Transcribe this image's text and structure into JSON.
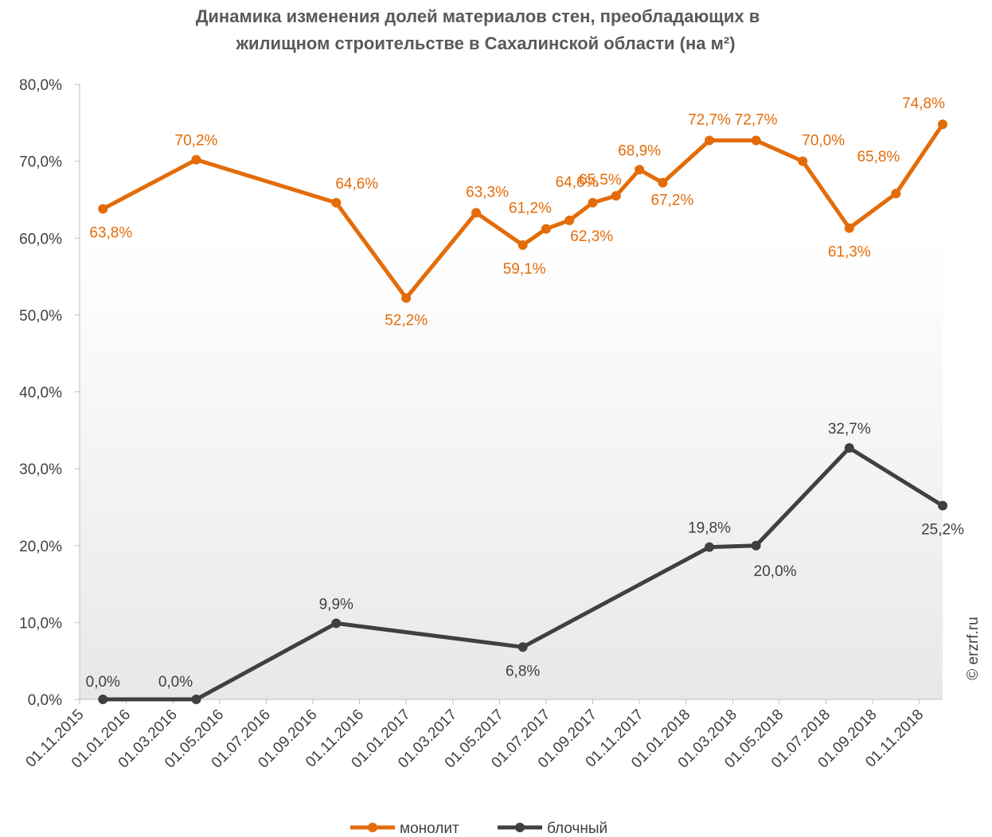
{
  "chart_data": {
    "type": "line",
    "title": [
      "Динамика изменения долей материалов стен, преобладающих в",
      "жилищном строительстве в Сахалинской области (на м²)"
    ],
    "xlim": [
      "01.11.2015",
      "01.12.2018"
    ],
    "xticks": [
      "01.11.2015",
      "01.01.2016",
      "01.03.2016",
      "01.05.2016",
      "01.07.2016",
      "01.09.2016",
      "01.11.2016",
      "01.01.2017",
      "01.03.2017",
      "01.05.2017",
      "01.07.2017",
      "01.09.2017",
      "01.11.2017",
      "01.01.2018",
      "01.03.2018",
      "01.05.2018",
      "01.07.2018",
      "01.09.2018",
      "01.11.2018"
    ],
    "ylim": [
      0,
      80
    ],
    "yticks": [
      {
        "value": 0,
        "label": "0,0%"
      },
      {
        "value": 10,
        "label": "10,0%"
      },
      {
        "value": 20,
        "label": "20,0%"
      },
      {
        "value": 30,
        "label": "30,0%"
      },
      {
        "value": 40,
        "label": "40,0%"
      },
      {
        "value": 50,
        "label": "50,0%"
      },
      {
        "value": 60,
        "label": "60,0%"
      },
      {
        "value": 70,
        "label": "70,0%"
      },
      {
        "value": 80,
        "label": "80,0%"
      }
    ],
    "legend": "bottom",
    "series": [
      {
        "name": "монолит",
        "color": "#e36c09",
        "x": [
          "01.12.2015",
          "01.04.2016",
          "01.10.2016",
          "01.01.2017",
          "01.04.2017",
          "01.06.2017",
          "01.07.2017",
          "01.08.2017",
          "01.09.2017",
          "01.10.2017",
          "01.11.2017",
          "01.12.2017",
          "01.02.2018",
          "01.04.2018",
          "01.06.2018",
          "01.08.2018",
          "01.10.2018",
          "01.12.2018"
        ],
        "values": [
          63.8,
          70.2,
          64.6,
          52.2,
          63.3,
          59.1,
          61.2,
          62.3,
          64.6,
          65.5,
          68.9,
          67.2,
          72.7,
          72.7,
          70.0,
          61.3,
          65.8,
          74.8
        ],
        "value_labels": [
          "63,8%",
          "70,2%",
          "64,6%",
          "52,2%",
          "63,3%",
          "59,1%",
          "61,2%",
          "62,3%",
          "64,6%",
          "65,5%",
          "68,9%",
          "67,2%",
          "72,7%",
          "72,7%",
          "70,0%",
          "61,3%",
          "65,8%",
          "74,8%"
        ]
      },
      {
        "name": "блочный",
        "color": "#404040",
        "x": [
          "01.12.2015",
          "01.04.2016",
          "01.10.2016",
          "01.06.2017",
          "01.02.2018",
          "01.04.2018",
          "01.08.2018",
          "01.12.2018"
        ],
        "values": [
          0.0,
          0.0,
          9.9,
          6.8,
          19.8,
          20.0,
          32.7,
          25.2
        ],
        "value_labels": [
          "0,0%",
          "0,0%",
          "9,9%",
          "6,8%",
          "19,8%",
          "20,0%",
          "32,7%",
          "25,2%"
        ]
      }
    ],
    "watermark": "© erzrf.ru"
  }
}
